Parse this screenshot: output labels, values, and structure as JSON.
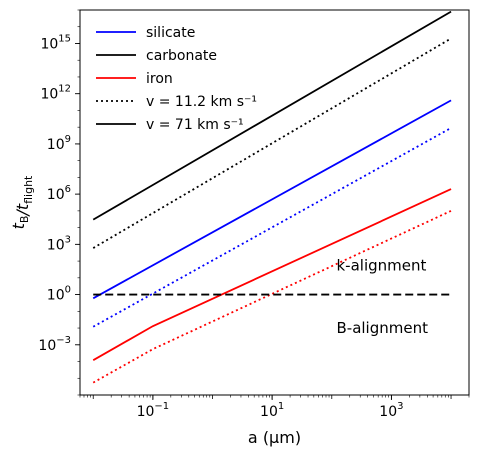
{
  "chart_data": {
    "type": "line",
    "xlabel": "a (μm)",
    "ylabel": "t_B/t_flight",
    "xscale": "log",
    "yscale": "log",
    "xlim": [
      0.006,
      20000
    ],
    "ylim": [
      1e-06,
      1e+17
    ],
    "x_ticks": [
      {
        "value": 0.1,
        "base": "10",
        "exp": "−1"
      },
      {
        "value": 10,
        "base": "10",
        "exp": "1"
      },
      {
        "value": 1000,
        "base": "10",
        "exp": "3"
      }
    ],
    "y_ticks": [
      {
        "value": 0.001,
        "base": "10",
        "exp": "−3"
      },
      {
        "value": 1,
        "base": "10",
        "exp": "0"
      },
      {
        "value": 1000,
        "base": "10",
        "exp": "3"
      },
      {
        "value": 1000000,
        "base": "10",
        "exp": "6"
      },
      {
        "value": 1000000000,
        "base": "10",
        "exp": "9"
      },
      {
        "value": 1000000000000,
        "base": "10",
        "exp": "12"
      },
      {
        "value": 1000000000000000,
        "base": "10",
        "exp": "15"
      }
    ],
    "legend_position": "top-left",
    "legend": [
      {
        "label": "silicate",
        "color": "#0000ff",
        "style": "solid"
      },
      {
        "label": "carbonate",
        "color": "#000000",
        "style": "solid"
      },
      {
        "label": "iron",
        "color": "#ff0000",
        "style": "solid"
      },
      {
        "label": "v = 11.2 km s⁻¹",
        "color": "#000000",
        "style": "dotted"
      },
      {
        "label": "v = 71 km s⁻¹",
        "color": "#000000",
        "style": "solid"
      }
    ],
    "series": [
      {
        "material": "carbonate",
        "v": "71 km s⁻¹",
        "color": "#000000",
        "style": "solid",
        "x": [
          0.01,
          10000
        ],
        "y": [
          30000,
          8e+16
        ]
      },
      {
        "material": "carbonate",
        "v": "11.2 km s⁻¹",
        "color": "#000000",
        "style": "dotted",
        "x": [
          0.01,
          10000
        ],
        "y": [
          600,
          2000000000000000.0
        ]
      },
      {
        "material": "silicate",
        "v": "71 km s⁻¹",
        "color": "#0000ff",
        "style": "solid",
        "x": [
          0.01,
          10000
        ],
        "y": [
          0.6,
          400000000000
        ]
      },
      {
        "material": "silicate",
        "v": "11.2 km s⁻¹",
        "color": "#0000ff",
        "style": "dotted",
        "x": [
          0.01,
          10000
        ],
        "y": [
          0.012,
          9000000000
        ]
      },
      {
        "material": "iron",
        "v": "71 km s⁻¹",
        "color": "#ff0000",
        "style": "solid",
        "x": [
          0.01,
          0.1,
          10000
        ],
        "y": [
          0.00012,
          0.013,
          2000000
        ]
      },
      {
        "material": "iron",
        "v": "11.2 km s⁻¹",
        "color": "#ff0000",
        "style": "dotted",
        "x": [
          0.01,
          0.1,
          10000
        ],
        "y": [
          5.5e-06,
          0.00055,
          100000
        ]
      }
    ],
    "threshold": {
      "y": 1,
      "color": "#000000",
      "style": "dashed",
      "x": [
        0.01,
        10000
      ]
    },
    "annotations": [
      {
        "text": "k-alignment",
        "x": 120,
        "y": 28
      },
      {
        "text": "B-alignment",
        "x": 120,
        "y": 0.005
      }
    ]
  }
}
